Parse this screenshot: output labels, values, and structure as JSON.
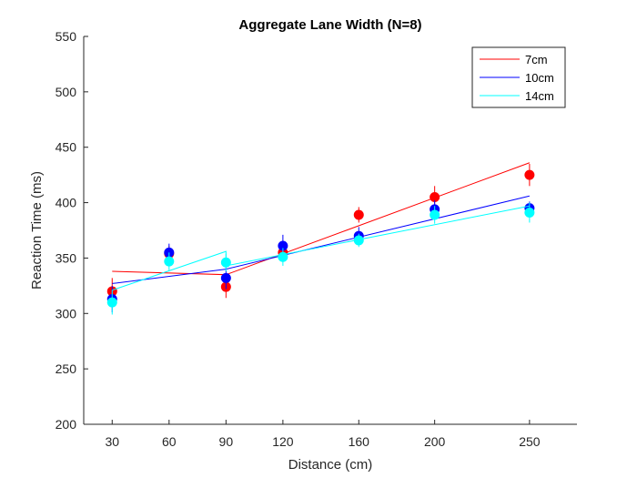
{
  "chart_data": {
    "type": "scatter",
    "title": "Aggregate Lane Width (N=8)",
    "xlabel": "Distance (cm)",
    "ylabel": "Reaction Time (ms)",
    "x": [
      30,
      60,
      90,
      120,
      160,
      200,
      250
    ],
    "x_tick_labels": [
      "30",
      "60",
      "90",
      "120",
      "160",
      "200",
      "250"
    ],
    "xlim": [
      15,
      275
    ],
    "ylim": [
      200,
      550
    ],
    "y_ticks": [
      200,
      250,
      300,
      350,
      400,
      450,
      500,
      550
    ],
    "legend_position": "top-right",
    "series": [
      {
        "name": "7cm",
        "color": "#ff0000",
        "values": [
          320,
          354,
          324,
          355,
          389,
          405,
          425
        ],
        "error": [
          12,
          7,
          10,
          8,
          7,
          10,
          10
        ],
        "fit_line": [
          {
            "x": 30,
            "y": 338
          },
          {
            "x": 90,
            "y": 335
          },
          {
            "x": 250,
            "y": 436
          }
        ]
      },
      {
        "name": "10cm",
        "color": "#0000ff",
        "values": [
          313,
          355,
          332,
          361,
          370,
          394,
          395
        ],
        "error": [
          12,
          8,
          10,
          10,
          8,
          8,
          6
        ],
        "fit_line": [
          {
            "x": 30,
            "y": 327
          },
          {
            "x": 90,
            "y": 340
          },
          {
            "x": 250,
            "y": 406
          }
        ]
      },
      {
        "name": "14cm",
        "color": "#00ffff",
        "values": [
          310,
          347,
          346,
          351,
          366,
          389,
          391
        ],
        "error": [
          11,
          8,
          8,
          8,
          6,
          8,
          9
        ],
        "fit_line": [
          {
            "x": 30,
            "y": 321
          },
          {
            "x": 90,
            "y": 356
          },
          {
            "x": 90,
            "y": 343
          },
          {
            "x": 250,
            "y": 397
          }
        ]
      }
    ]
  }
}
